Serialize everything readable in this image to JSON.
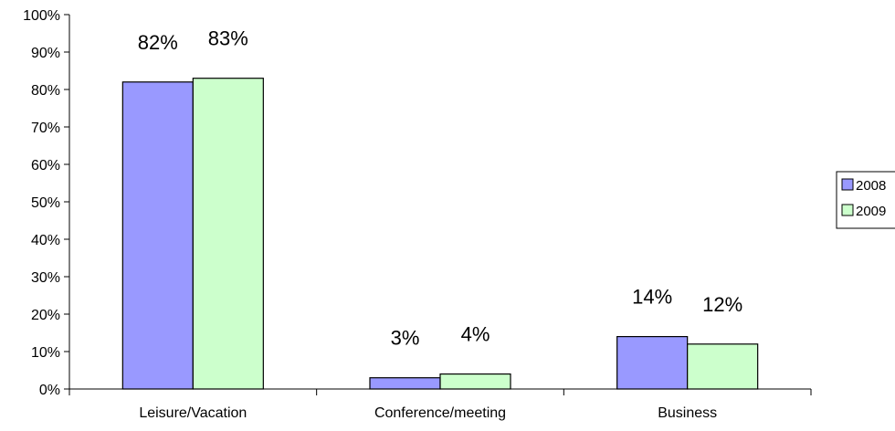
{
  "chart_data": {
    "type": "bar",
    "categories": [
      "Leisure/Vacation",
      "Conference/meeting",
      "Business"
    ],
    "series": [
      {
        "name": "2008",
        "values": [
          82,
          3,
          14
        ],
        "labels": [
          "82%",
          "3%",
          "14%"
        ],
        "color": "#9999ff"
      },
      {
        "name": "2009",
        "values": [
          83,
          4,
          12
        ],
        "labels": [
          "83%",
          "4%",
          "12%"
        ],
        "color": "#ccffcc"
      }
    ],
    "ylim": [
      0,
      100
    ],
    "yticks": [
      0,
      10,
      20,
      30,
      40,
      50,
      60,
      70,
      80,
      90,
      100
    ],
    "ytick_labels": [
      "0%",
      "10%",
      "20%",
      "30%",
      "40%",
      "50%",
      "60%",
      "70%",
      "80%",
      "90%",
      "100%"
    ],
    "grid": false,
    "legend_position": "right",
    "title": "",
    "xlabel": "",
    "ylabel": ""
  }
}
